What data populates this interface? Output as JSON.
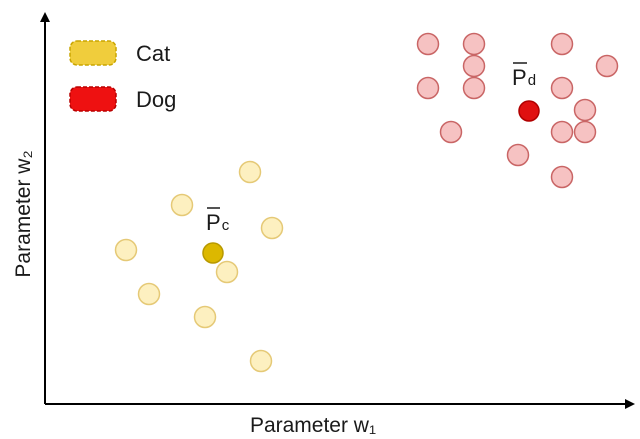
{
  "legend": {
    "items": [
      {
        "label": "Cat",
        "fill": "#f0cd3c",
        "stroke": "#c9a500"
      },
      {
        "label": "Dog",
        "fill": "#ee1111",
        "stroke": "#b80000"
      }
    ]
  },
  "axes": {
    "xlabel": "Parameter w₁",
    "ylabel": "Parameter w₂"
  },
  "centroids": {
    "cat": {
      "letter": "P",
      "subscript": "c",
      "fill": "#dcb800",
      "stroke": "#b89900"
    },
    "dog": {
      "letter": "P",
      "subscript": "d",
      "fill": "#e01010",
      "stroke": "#b00000"
    }
  },
  "point_style": {
    "cat": {
      "fill": "#fdf0c0",
      "stroke": "#e5c976"
    },
    "dog": {
      "fill": "#f6c2c2",
      "stroke": "#c96565"
    }
  }
}
